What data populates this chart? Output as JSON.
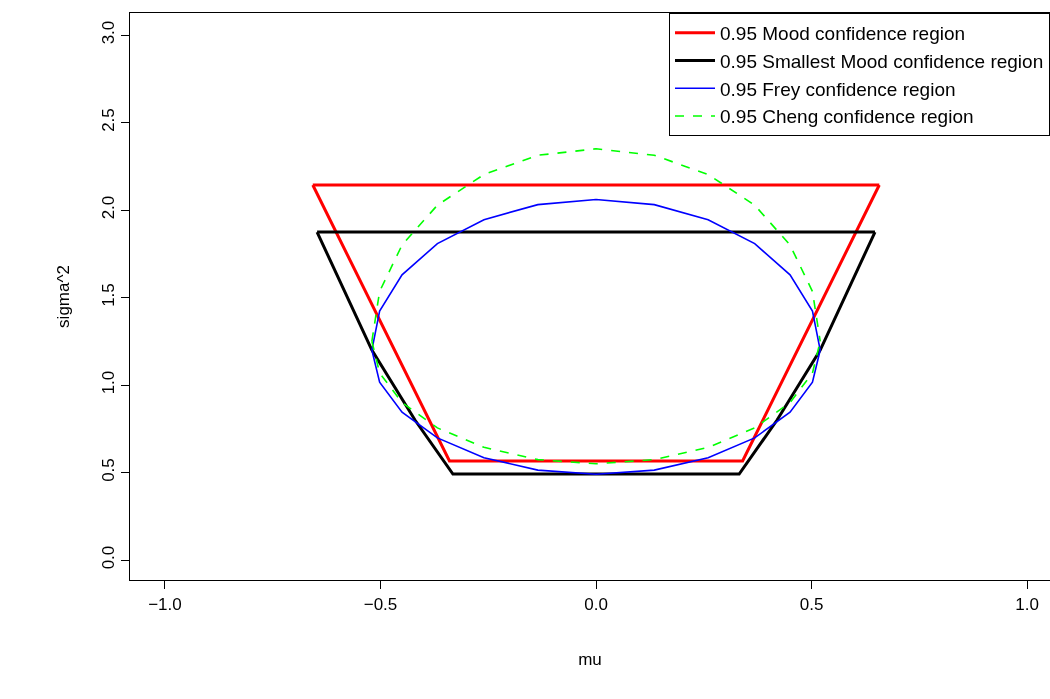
{
  "chart_data": {
    "type": "line",
    "xlabel": "mu",
    "ylabel": "sigma^2",
    "xlim": [
      -1.081,
      1.053
    ],
    "ylim": [
      -0.114,
      3.126
    ],
    "xticks": [
      {
        "value": -1.0,
        "label": "−1.0"
      },
      {
        "value": -0.5,
        "label": "−0.5"
      },
      {
        "value": 0.0,
        "label": "0.0"
      },
      {
        "value": 0.5,
        "label": "0.5"
      },
      {
        "value": 1.0,
        "label": "1.0"
      }
    ],
    "yticks": [
      {
        "value": 0.0,
        "label": "0.0"
      },
      {
        "value": 0.5,
        "label": "0.5"
      },
      {
        "value": 1.0,
        "label": "1.0"
      },
      {
        "value": 1.5,
        "label": "1.5"
      },
      {
        "value": 2.0,
        "label": "2.0"
      },
      {
        "value": 2.5,
        "label": "2.5"
      },
      {
        "value": 3.0,
        "label": "3.0"
      }
    ],
    "legend": "top right",
    "marker": "none",
    "series": [
      {
        "name": "0.95 Mood confidence region",
        "color": "#ff0000",
        "line_style": "solid",
        "x": [
          -0.657,
          0.657
        ],
        "values": [
          2.143,
          2.143
        ]
      },
      {
        "color": "#ff0000",
        "line_style": "solid",
        "x": [
          -0.657,
          -0.34,
          0.34,
          0.657
        ],
        "values": [
          2.143,
          0.566,
          0.566,
          2.143
        ]
      },
      {
        "name": "0.95 Smallest Mood confidence region",
        "color": "#000000",
        "line_style": "solid",
        "x": [
          -0.647,
          0.647
        ],
        "values": [
          1.874,
          1.874
        ]
      },
      {
        "color": "#000000",
        "line_style": "solid",
        "x": [
          -0.647,
          -0.52,
          -0.42,
          -0.332,
          0.332,
          0.42,
          0.52,
          0.647
        ],
        "values": [
          1.874,
          1.2,
          0.8,
          0.491,
          0.491,
          0.8,
          1.2,
          1.874
        ]
      },
      {
        "name": "0.95 Frey confidence region",
        "color": "#0000ff",
        "line_style": "solid",
        "x": [
          -0.52,
          -0.502,
          -0.45,
          -0.368,
          -0.26,
          -0.135,
          0,
          0.135,
          0.26,
          0.368,
          0.45,
          0.502,
          0.52,
          null,
          -0.52,
          -0.502,
          -0.45,
          -0.368,
          -0.26,
          -0.135,
          0,
          0.135,
          0.26,
          0.368,
          0.45,
          0.502,
          0.52
        ],
        "values": [
          1.2,
          1.423,
          1.63,
          1.808,
          1.945,
          2.031,
          2.06,
          2.031,
          1.945,
          1.808,
          1.63,
          1.423,
          1.2,
          null,
          1.2,
          1.016,
          0.845,
          0.698,
          0.585,
          0.514,
          0.49,
          0.514,
          0.585,
          0.698,
          0.845,
          1.016,
          1.2
        ]
      },
      {
        "name": "0.95 Cheng confidence region",
        "color": "#00ff00",
        "line_style": "dashed",
        "x": [
          -0.52,
          -0.502,
          -0.45,
          -0.368,
          -0.26,
          -0.135,
          0,
          0.135,
          0.26,
          0.368,
          0.45,
          0.502,
          0.52,
          null,
          -0.52,
          -0.502,
          -0.45,
          -0.368,
          -0.26,
          -0.135,
          0,
          0.135,
          0.26,
          0.368,
          0.45,
          0.502,
          0.52
        ],
        "values": [
          1.25,
          1.535,
          1.8,
          2.028,
          2.203,
          2.313,
          2.35,
          2.313,
          2.203,
          2.028,
          1.8,
          1.535,
          1.25,
          null,
          1.25,
          1.069,
          0.9,
          0.755,
          0.644,
          0.574,
          0.55,
          0.574,
          0.644,
          0.755,
          0.9,
          1.069,
          1.25
        ]
      }
    ]
  }
}
